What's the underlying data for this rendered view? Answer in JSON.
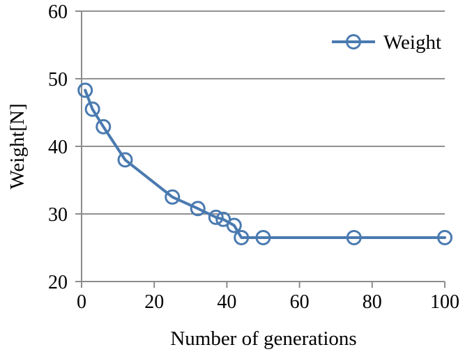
{
  "chart_data": {
    "type": "line",
    "xlabel": "Number of generations",
    "ylabel": "Weight[N]",
    "xlim": [
      0,
      100
    ],
    "ylim": [
      20,
      60
    ],
    "x_ticks": [
      0,
      20,
      40,
      60,
      80,
      100
    ],
    "y_ticks": [
      20,
      30,
      40,
      50,
      60
    ],
    "grid": "horizontal-only",
    "legend": {
      "position": "top-right-inside",
      "entries": [
        "Weight"
      ]
    },
    "series": [
      {
        "name": "Weight",
        "color": "#4a7ab0",
        "marker": "open-circle",
        "x": [
          1,
          3,
          6,
          12,
          25,
          32,
          37,
          39,
          42,
          44,
          50,
          75,
          100
        ],
        "y": [
          48.3,
          45.5,
          42.9,
          38.0,
          32.5,
          30.8,
          29.5,
          29.2,
          28.3,
          26.5,
          26.5,
          26.5,
          26.5
        ]
      }
    ],
    "colors": {
      "grid": "#919191",
      "axis": "#8c8c8c",
      "text": "#000000",
      "background": "#ffffff"
    }
  }
}
